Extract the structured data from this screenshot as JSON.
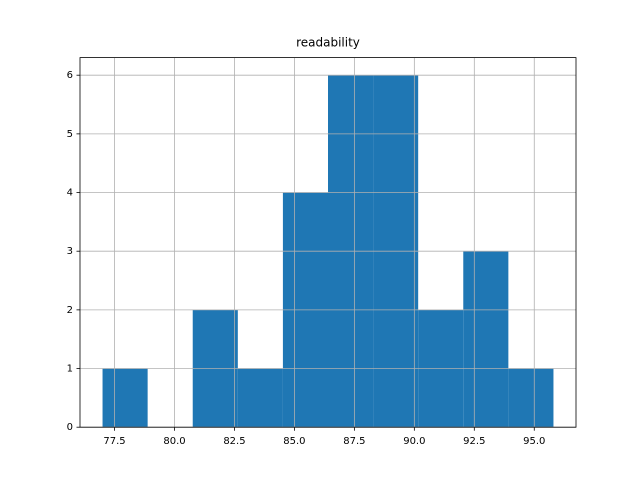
{
  "chart_data": {
    "type": "histogram",
    "title": "readability",
    "bins": [
      77.0,
      78.88,
      80.76,
      82.64,
      84.52,
      86.4,
      88.28,
      90.16,
      92.04,
      93.92,
      95.8
    ],
    "values": [
      1,
      0,
      2,
      1,
      4,
      6,
      6,
      2,
      3,
      1
    ],
    "color": "#1f77b4",
    "xlim": [
      76.06,
      96.74
    ],
    "xticks": [
      77.5,
      {
        "value": 80,
        "label": "80.0"
      },
      82.5,
      {
        "value": 85,
        "label": "85.0"
      },
      87.5,
      {
        "value": 90,
        "label": "90.0"
      },
      92.5,
      {
        "value": 95,
        "label": "95.0"
      }
    ],
    "ylim": [
      0,
      6.3
    ],
    "yticks": [
      0,
      1,
      2,
      3,
      4,
      5,
      6
    ],
    "grid": true
  }
}
